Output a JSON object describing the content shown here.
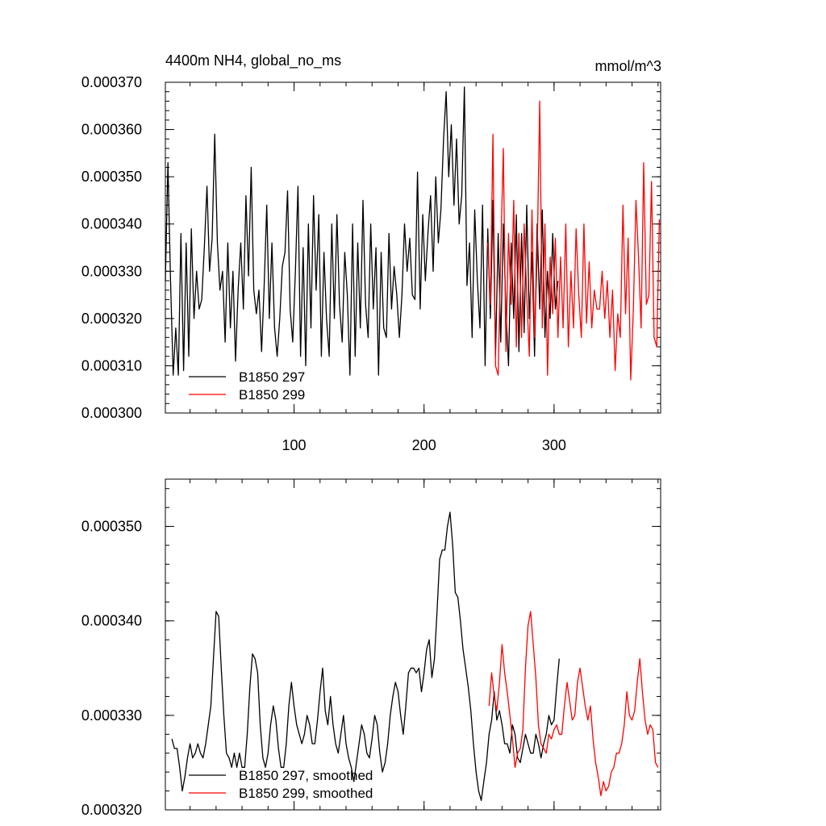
{
  "chart_data": [
    {
      "type": "line",
      "title": "4400m NH4, global_no_ms",
      "units": "mmol/m^3",
      "xlabel": "",
      "ylabel": "",
      "xlim": [
        1,
        382
      ],
      "ylim": [
        0.0003,
        0.00037
      ],
      "xticks": [
        100,
        200,
        300
      ],
      "xtick_labels": [
        "100",
        "200",
        "300"
      ],
      "yticks": [
        0.0003,
        0.00031,
        0.00032,
        0.00033,
        0.00034,
        0.00035,
        0.00036,
        0.00037
      ],
      "ytick_labels": [
        "0.000300",
        "0.000310",
        "0.000320",
        "0.000330",
        "0.000340",
        "0.000350",
        "0.000360",
        "0.000370"
      ],
      "legend_position": "bottom-left",
      "series": [
        {
          "name": "B1850 297",
          "color": "#000000",
          "x": [
            1,
            3,
            5,
            7,
            9,
            11,
            13,
            15,
            17,
            19,
            21,
            23,
            25,
            27,
            29,
            31,
            33,
            35,
            37,
            39,
            41,
            43,
            45,
            47,
            49,
            51,
            53,
            55,
            57,
            59,
            61,
            63,
            65,
            67,
            69,
            71,
            73,
            75,
            77,
            79,
            81,
            83,
            85,
            87,
            89,
            91,
            93,
            95,
            97,
            99,
            101,
            103,
            105,
            107,
            109,
            111,
            113,
            115,
            117,
            119,
            121,
            123,
            125,
            127,
            129,
            131,
            133,
            135,
            137,
            139,
            141,
            143,
            145,
            147,
            149,
            151,
            153,
            155,
            157,
            159,
            161,
            163,
            165,
            167,
            169,
            171,
            173,
            175,
            177,
            179,
            181,
            183,
            185,
            187,
            189,
            191,
            193,
            195,
            197,
            199,
            201,
            203,
            205,
            207,
            209,
            211,
            213,
            215,
            217,
            219,
            221,
            223,
            225,
            227,
            229,
            231,
            233,
            235,
            237,
            239,
            241,
            243,
            245,
            247,
            249,
            251,
            253,
            255,
            257,
            259,
            261,
            263,
            265,
            267,
            269,
            271,
            273,
            275,
            277,
            279,
            281,
            283,
            285,
            287,
            289,
            291,
            293,
            295,
            297,
            299,
            301,
            303
          ],
          "values": [
            0.000328,
            0.000353,
            0.000328,
            0.000308,
            0.000318,
            0.000308,
            0.000338,
            0.000309,
            0.000336,
            0.000312,
            0.000339,
            0.00032,
            0.00033,
            0.000322,
            0.000324,
            0.000335,
            0.000348,
            0.00033,
            0.000337,
            0.000359,
            0.000336,
            0.000326,
            0.00033,
            0.000315,
            0.000336,
            0.000318,
            0.00033,
            0.000311,
            0.000326,
            0.000336,
            0.000322,
            0.000346,
            0.000329,
            0.000352,
            0.000326,
            0.000321,
            0.000326,
            0.000313,
            0.000327,
            0.000344,
            0.00032,
            0.000336,
            0.000318,
            0.000312,
            0.00032,
            0.000331,
            0.000334,
            0.000347,
            0.000322,
            0.000315,
            0.00033,
            0.000348,
            0.000312,
            0.000335,
            0.00031,
            0.00034,
            0.000318,
            0.000346,
            0.000326,
            0.000342,
            0.000312,
            0.000334,
            0.00032,
            0.000312,
            0.00034,
            0.00032,
            0.000342,
            0.000323,
            0.000315,
            0.000334,
            0.000325,
            0.000308,
            0.00034,
            0.000312,
            0.000336,
            0.000318,
            0.000345,
            0.000323,
            0.000316,
            0.00034,
            0.000322,
            0.000335,
            0.000308,
            0.000334,
            0.000318,
            0.000316,
            0.000338,
            0.000322,
            0.000331,
            0.000325,
            0.000316,
            0.000325,
            0.00034,
            0.00033,
            0.000337,
            0.000325,
            0.000324,
            0.000351,
            0.000322,
            0.000342,
            0.000328,
            0.000338,
            0.000346,
            0.00033,
            0.00035,
            0.000336,
            0.000343,
            0.000358,
            0.000368,
            0.00035,
            0.000361,
            0.000344,
            0.000358,
            0.00034,
            0.000346,
            0.000369,
            0.000327,
            0.000336,
            0.000316,
            0.000343,
            0.000328,
            0.000318,
            0.000344,
            0.00031,
            0.000339,
            0.00032,
            0.000345,
            0.000312,
            0.000338,
            0.000315,
            0.00034,
            0.000322,
            0.00031,
            0.000336,
            0.00032,
            0.000342,
            0.000313,
            0.000338,
            0.000317,
            0.000344,
            0.00032,
            0.000334,
            0.000312,
            0.00034,
            0.000322,
            0.000343,
            0.000316,
            0.00033,
            0.00032,
            0.000338,
            0.000322,
            0.000328
          ]
        },
        {
          "name": "B1850 299",
          "color": "#ff0000",
          "x": [
            249,
            251,
            253,
            255,
            257,
            259,
            261,
            263,
            265,
            267,
            269,
            271,
            273,
            275,
            277,
            279,
            281,
            283,
            285,
            287,
            289,
            291,
            293,
            295,
            297,
            299,
            301,
            303,
            305,
            307,
            309,
            311,
            313,
            315,
            317,
            319,
            321,
            323,
            325,
            327,
            329,
            331,
            333,
            335,
            337,
            339,
            341,
            343,
            345,
            347,
            349,
            351,
            353,
            355,
            357,
            359,
            361,
            363,
            365,
            367,
            369,
            371,
            373,
            375,
            377,
            379,
            381
          ],
          "values": [
            0.000336,
            0.000323,
            0.000359,
            0.00031,
            0.000308,
            0.000334,
            0.000356,
            0.000313,
            0.000338,
            0.000323,
            0.000345,
            0.000314,
            0.000338,
            0.000316,
            0.00034,
            0.000325,
            0.000312,
            0.000343,
            0.000316,
            0.000333,
            0.000366,
            0.000318,
            0.00034,
            0.000308,
            0.000333,
            0.000321,
            0.000337,
            0.000316,
            0.000333,
            0.000318,
            0.00034,
            0.000314,
            0.00033,
            0.000318,
            0.000339,
            0.000325,
            0.000316,
            0.00034,
            0.000319,
            0.000332,
            0.000318,
            0.000326,
            0.000322,
            0.000322,
            0.00033,
            0.00032,
            0.000328,
            0.000316,
            0.000326,
            0.000309,
            0.000321,
            0.000316,
            0.000344,
            0.000321,
            0.000337,
            0.000307,
            0.000322,
            0.000345,
            0.000333,
            0.000318,
            0.000353,
            0.000323,
            0.000325,
            0.000349,
            0.000316,
            0.000314,
            0.000341
          ]
        }
      ]
    },
    {
      "type": "line",
      "title": "",
      "xlabel": "",
      "ylabel": "",
      "xlim": [
        1,
        382
      ],
      "ylim": [
        0.00032,
        0.000355
      ],
      "xticks": [
        100,
        200,
        300
      ],
      "yticks": [
        0.00032,
        0.00033,
        0.00034,
        0.00035
      ],
      "ytick_labels": [
        "0.000320",
        "0.000330",
        "0.000340",
        "0.000350"
      ],
      "legend_position": "bottom-left",
      "series": [
        {
          "name": "B1850 297, smoothed",
          "color": "#000000",
          "x": [
            6,
            8,
            10,
            12,
            14,
            16,
            18,
            20,
            22,
            24,
            26,
            28,
            30,
            32,
            34,
            36,
            38,
            40,
            42,
            44,
            46,
            48,
            50,
            52,
            54,
            56,
            58,
            60,
            62,
            64,
            66,
            68,
            70,
            72,
            74,
            76,
            78,
            80,
            82,
            84,
            86,
            88,
            90,
            92,
            94,
            96,
            98,
            100,
            102,
            104,
            106,
            108,
            110,
            112,
            114,
            116,
            118,
            120,
            122,
            124,
            126,
            128,
            130,
            132,
            134,
            136,
            138,
            140,
            142,
            144,
            146,
            148,
            150,
            152,
            154,
            156,
            158,
            160,
            162,
            164,
            166,
            168,
            170,
            172,
            174,
            176,
            178,
            180,
            182,
            184,
            186,
            188,
            190,
            192,
            194,
            196,
            198,
            200,
            202,
            204,
            206,
            208,
            210,
            212,
            214,
            216,
            218,
            220,
            222,
            224,
            226,
            228,
            230,
            232,
            234,
            236,
            238,
            240,
            242,
            244,
            246,
            248,
            250,
            252,
            254,
            256,
            258,
            260,
            262,
            264,
            266,
            268,
            270,
            272,
            274,
            276,
            278,
            280,
            282,
            284,
            286,
            288,
            290,
            292,
            294,
            296,
            298,
            300,
            302,
            304
          ],
          "values": [
            0.0003275,
            0.0003265,
            0.0003265,
            0.0003245,
            0.000322,
            0.0003235,
            0.0003255,
            0.000327,
            0.0003255,
            0.000326,
            0.000327,
            0.000326,
            0.0003255,
            0.000327,
            0.000329,
            0.000331,
            0.000336,
            0.000341,
            0.0003405,
            0.000335,
            0.00033,
            0.000326,
            0.0003255,
            0.0003245,
            0.000326,
            0.0003245,
            0.000326,
            0.0003245,
            0.0003245,
            0.000328,
            0.000333,
            0.0003365,
            0.000336,
            0.0003345,
            0.000329,
            0.0003255,
            0.0003245,
            0.000326,
            0.000329,
            0.000331,
            0.0003295,
            0.0003265,
            0.0003245,
            0.0003245,
            0.000327,
            0.000331,
            0.0003335,
            0.000331,
            0.000329,
            0.000328,
            0.000327,
            0.000328,
            0.00033,
            0.000329,
            0.000327,
            0.000327,
            0.0003295,
            0.0003325,
            0.000335,
            0.0003305,
            0.000329,
            0.000332,
            0.000329,
            0.000327,
            0.000326,
            0.000328,
            0.00033,
            0.000327,
            0.0003255,
            0.0003245,
            0.000323,
            0.000325,
            0.000327,
            0.000329,
            0.000328,
            0.000326,
            0.0003255,
            0.0003275,
            0.00033,
            0.000329,
            0.000326,
            0.000324,
            0.000325,
            0.000327,
            0.00033,
            0.000332,
            0.0003335,
            0.0003325,
            0.00033,
            0.000328,
            0.000331,
            0.0003345,
            0.000335,
            0.000335,
            0.0003345,
            0.000335,
            0.0003325,
            0.0003345,
            0.000337,
            0.000338,
            0.000334,
            0.000336,
            0.000341,
            0.0003465,
            0.0003475,
            0.0003475,
            0.00035,
            0.0003515,
            0.000348,
            0.000343,
            0.0003425,
            0.00034,
            0.000337,
            0.000335,
            0.000333,
            0.0003305,
            0.000327,
            0.000324,
            0.000322,
            0.000321,
            0.000323,
            0.000325,
            0.000328,
            0.0003295,
            0.0003325,
            0.0003295,
            0.0003305,
            0.000329,
            0.000327,
            0.000327,
            0.000326,
            0.000329,
            0.000328,
            0.0003255,
            0.000325,
            0.0003265,
            0.000328,
            0.000327,
            0.000326,
            0.000326,
            0.000328,
            0.000327,
            0.0003255,
            0.000327,
            0.000328,
            0.00033,
            0.000329,
            0.0003295,
            0.000333,
            0.000336
          ]
        },
        {
          "name": "B1850 299, smoothed",
          "color": "#ff0000",
          "x": [
            250,
            252,
            254,
            256,
            258,
            260,
            262,
            264,
            266,
            268,
            270,
            272,
            274,
            276,
            278,
            280,
            282,
            284,
            286,
            288,
            290,
            292,
            294,
            296,
            298,
            300,
            302,
            304,
            306,
            308,
            310,
            312,
            314,
            316,
            318,
            320,
            322,
            324,
            326,
            328,
            330,
            332,
            334,
            336,
            338,
            340,
            342,
            344,
            346,
            348,
            350,
            352,
            354,
            356,
            358,
            360,
            362,
            364,
            366,
            368,
            370,
            372,
            374,
            376,
            378,
            380
          ],
          "values": [
            0.000331,
            0.0003345,
            0.000332,
            0.0003305,
            0.0003335,
            0.0003375,
            0.0003345,
            0.0003325,
            0.00033,
            0.0003275,
            0.0003245,
            0.000326,
            0.0003265,
            0.0003285,
            0.000335,
            0.0003395,
            0.000341,
            0.0003375,
            0.000334,
            0.000329,
            0.000327,
            0.0003265,
            0.000326,
            0.000328,
            0.0003275,
            0.0003285,
            0.000329,
            0.000328,
            0.000328,
            0.000331,
            0.0003335,
            0.0003315,
            0.0003295,
            0.00033,
            0.0003335,
            0.000335,
            0.000333,
            0.000331,
            0.0003295,
            0.000331,
            0.0003275,
            0.000325,
            0.0003235,
            0.0003215,
            0.000323,
            0.000322,
            0.0003225,
            0.000324,
            0.0003245,
            0.000326,
            0.000326,
            0.000327,
            0.000329,
            0.0003325,
            0.00033,
            0.0003295,
            0.0003305,
            0.0003335,
            0.000336,
            0.0003325,
            0.0003295,
            0.000328,
            0.000329,
            0.0003285,
            0.000325,
            0.0003245
          ]
        }
      ]
    }
  ]
}
